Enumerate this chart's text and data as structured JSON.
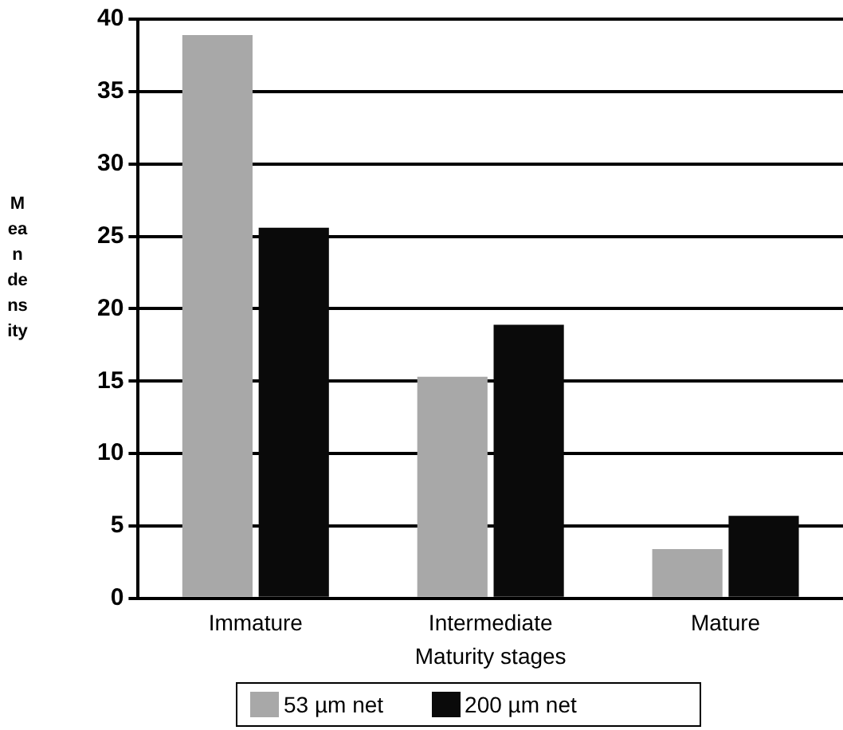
{
  "chart_data": {
    "type": "bar",
    "xlabel": "Maturity stages",
    "ylabel": "Mean density",
    "categories": [
      "Immature",
      "Intermediate",
      "Mature"
    ],
    "series": [
      {
        "name": "53 µm net",
        "color": "#a8a8a8",
        "values": [
          38.9,
          15.3,
          3.4
        ]
      },
      {
        "name": "200 µm net",
        "color": "#0a0a0a",
        "values": [
          25.6,
          18.9,
          5.7
        ]
      }
    ],
    "ylim": [
      0,
      40
    ],
    "yticks": [
      0,
      5,
      10,
      15,
      20,
      25,
      30,
      35,
      40
    ],
    "grid": "y",
    "legend": "bottom"
  }
}
